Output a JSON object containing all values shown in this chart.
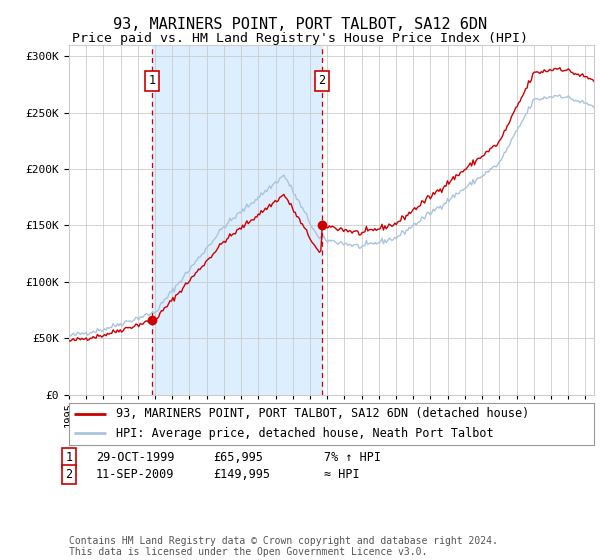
{
  "title": "93, MARINERS POINT, PORT TALBOT, SA12 6DN",
  "subtitle": "Price paid vs. HM Land Registry's House Price Index (HPI)",
  "ylim": [
    0,
    310000
  ],
  "yticks": [
    0,
    50000,
    100000,
    150000,
    200000,
    250000,
    300000
  ],
  "ytick_labels": [
    "£0",
    "£50K",
    "£100K",
    "£150K",
    "£200K",
    "£250K",
    "£300K"
  ],
  "x_start_year": 1995.0,
  "x_end_year": 2025.5,
  "sale1_date": 1999.83,
  "sale1_price": 65995,
  "sale1_label": "1",
  "sale2_date": 2009.7,
  "sale2_price": 149995,
  "sale2_label": "2",
  "hpi_line_color": "#aac4e0",
  "price_line_color": "#cc0000",
  "sale_dot_color": "#cc0000",
  "shade_color": "#ddeeff",
  "vline_color": "#cc0000",
  "grid_color": "#cccccc",
  "background_color": "#ffffff",
  "legend_line1": "93, MARINERS POINT, PORT TALBOT, SA12 6DN (detached house)",
  "legend_line2": "HPI: Average price, detached house, Neath Port Talbot",
  "table_row1": [
    "1",
    "29-OCT-1999",
    "£65,995",
    "7% ↑ HPI"
  ],
  "table_row2": [
    "2",
    "11-SEP-2009",
    "£149,995",
    "≈ HPI"
  ],
  "footer": "Contains HM Land Registry data © Crown copyright and database right 2024.\nThis data is licensed under the Open Government Licence v3.0.",
  "title_fontsize": 11,
  "subtitle_fontsize": 9.5,
  "tick_fontsize": 8,
  "legend_fontsize": 8.5,
  "footer_fontsize": 7
}
